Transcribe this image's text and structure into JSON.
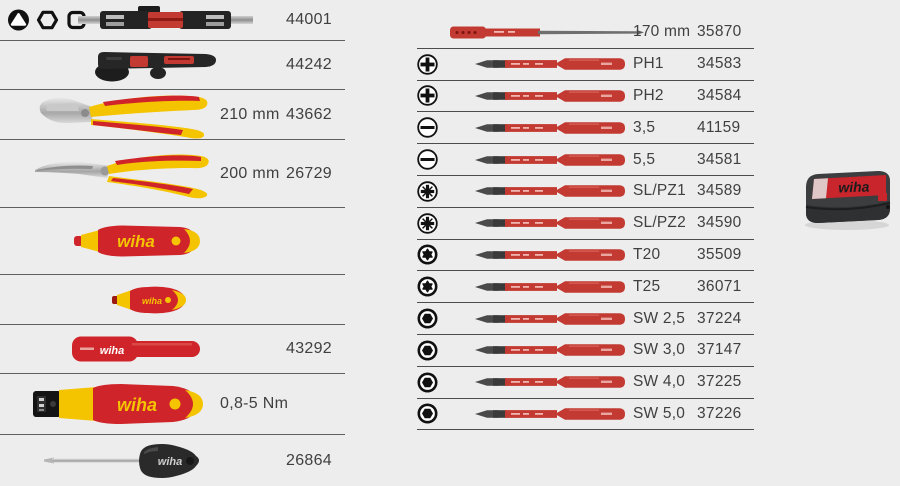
{
  "page": {
    "background": "#ededed"
  },
  "brand": "wiha",
  "colors": {
    "wiha_red": "#cf2429",
    "wiha_yellow": "#f5c400",
    "bit_red": "#c23a31",
    "case_gray": "#3b3d3f"
  },
  "left_table": {
    "rows": [
      {
        "tool": "bit-holder-set",
        "icons": [
          "triangle",
          "hex-socket",
          "square"
        ],
        "size": "",
        "number": "44001"
      },
      {
        "tool": "stripping-tool",
        "icons": [],
        "size": "",
        "number": "44242"
      },
      {
        "tool": "cable-cutter",
        "icons": [],
        "size": "210 mm",
        "number": "43662"
      },
      {
        "tool": "bent-nose-pliers",
        "icons": [],
        "size": "200 mm",
        "number": "26729"
      },
      {
        "tool": "softfinish-handle",
        "icons": [],
        "size": "",
        "number": ""
      },
      {
        "tool": "stubby-handle",
        "icons": [],
        "size": "",
        "number": ""
      },
      {
        "tool": "torque-sleeve",
        "icons": [],
        "size": "",
        "number": "43292"
      },
      {
        "tool": "torque-handle",
        "icons": [],
        "size": "0,8-5 Nm",
        "number": ""
      },
      {
        "tool": "stubby-screwdriver",
        "icons": [],
        "size": "",
        "number": "26864"
      }
    ]
  },
  "right_table": {
    "rows": [
      {
        "icon": "",
        "bit": "blade",
        "label": "170 mm",
        "number": "35870"
      },
      {
        "icon": "phillips",
        "bit": "bit",
        "label": "PH1",
        "number": "34583"
      },
      {
        "icon": "phillips",
        "bit": "bit",
        "label": "PH2",
        "number": "34584"
      },
      {
        "icon": "slotted",
        "bit": "bit",
        "label": "3,5",
        "number": "41159"
      },
      {
        "icon": "slotted",
        "bit": "bit",
        "label": "5,5",
        "number": "34581"
      },
      {
        "icon": "pozidriv-slotted",
        "bit": "bit",
        "label": "SL/PZ1",
        "number": "34589"
      },
      {
        "icon": "pozidriv-slotted",
        "bit": "bit",
        "label": "SL/PZ2",
        "number": "34590"
      },
      {
        "icon": "torx",
        "bit": "bit",
        "label": "T20",
        "number": "35509"
      },
      {
        "icon": "torx",
        "bit": "bit",
        "label": "T25",
        "number": "36071"
      },
      {
        "icon": "hex",
        "bit": "bit",
        "label": "SW 2,5",
        "number": "37224"
      },
      {
        "icon": "hex",
        "bit": "bit",
        "label": "SW 3,0",
        "number": "37147"
      },
      {
        "icon": "hex",
        "bit": "bit",
        "label": "SW 4,0",
        "number": "37225"
      },
      {
        "icon": "hex",
        "bit": "bit",
        "label": "SW 5,0",
        "number": "37226"
      }
    ]
  },
  "case": {
    "label": "wiha"
  }
}
